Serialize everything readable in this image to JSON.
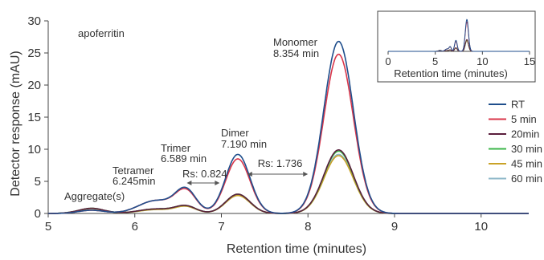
{
  "chart_data": {
    "type": "line",
    "xlabel": "Retention time (minutes)",
    "ylabel": "Detector response (mAU)",
    "xlim": [
      5,
      10.55
    ],
    "ylim": [
      0,
      30
    ],
    "xticks": [
      5,
      6,
      7,
      8,
      9,
      10
    ],
    "yticks": [
      0,
      5,
      10,
      15,
      20,
      25,
      30
    ],
    "legend_position": "right",
    "annotations": {
      "sample": "apoferritin",
      "aggregate": "Aggregate(s)",
      "tetramer_name": "Tetramer",
      "tetramer_time": "6.245min",
      "trimer_name": "Trimer",
      "trimer_time": "6.589 min",
      "dimer_name": "Dimer",
      "dimer_time": "7.190 min",
      "monomer_name": "Monomer",
      "monomer_time": "8.354  min",
      "rs1": "Rs: 0.824",
      "rs2": "Rs: 1.736"
    },
    "series": [
      {
        "name": "RT",
        "color": "#1f4e8c",
        "peaks": {
          "aggregate": 0.5,
          "tetramer": 2.0,
          "trimer": 3.6,
          "dimer": 9.2,
          "monomer": 26.8
        }
      },
      {
        "name": "5 min",
        "color": "#d9364a",
        "peaks": {
          "aggregate": 0.5,
          "tetramer": 2.0,
          "trimer": 3.4,
          "dimer": 8.5,
          "monomer": 24.8
        }
      },
      {
        "name": "20min",
        "color": "#5a1e3c",
        "peaks": {
          "aggregate": 0.8,
          "tetramer": 0.7,
          "trimer": 1.1,
          "dimer": 3.0,
          "monomer": 9.9
        }
      },
      {
        "name": "30 min",
        "color": "#3bb54a",
        "peaks": {
          "aggregate": 0.8,
          "tetramer": 0.7,
          "trimer": 1.1,
          "dimer": 3.0,
          "monomer": 9.7
        }
      },
      {
        "name": "45 min",
        "color": "#c9a227",
        "peaks": {
          "aggregate": 0.75,
          "tetramer": 0.6,
          "trimer": 1.0,
          "dimer": 2.8,
          "monomer": 9.0
        }
      },
      {
        "name": "60 min",
        "color": "#8fb8c9",
        "peaks": {
          "aggregate": 0.75,
          "tetramer": 0.6,
          "trimer": 1.0,
          "dimer": 2.8,
          "monomer": 9.2
        }
      }
    ],
    "peak_centers": {
      "aggregate": 5.5,
      "tetramer": 6.245,
      "trimer": 6.589,
      "dimer": 7.19,
      "monomer": 8.354
    },
    "peak_widths": {
      "aggregate": 0.15,
      "tetramer": 0.2,
      "trimer": 0.12,
      "dimer": 0.14,
      "monomer": 0.17
    },
    "inset": {
      "xlabel": "Retention time (minutes)",
      "xlim": [
        0,
        15
      ],
      "xticks": [
        0,
        5,
        10,
        15
      ]
    }
  }
}
